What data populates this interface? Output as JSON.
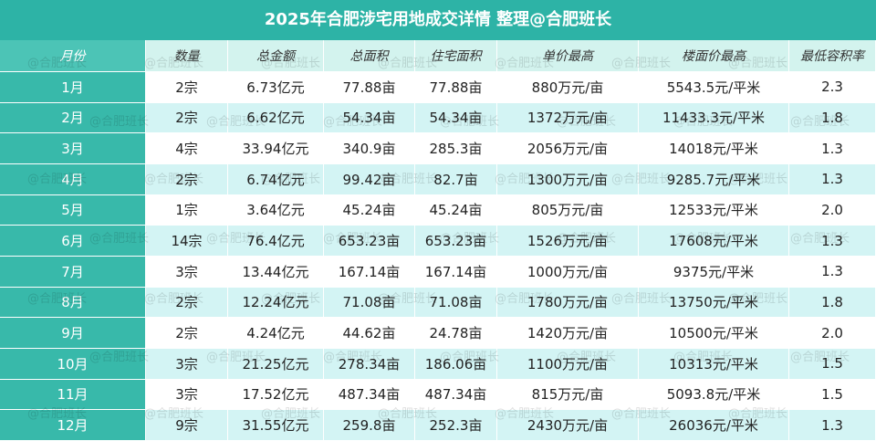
{
  "title": "2025年合肥涉宅用地成交详情 整理@合肥班长",
  "watermark": "@合肥班长",
  "table": {
    "header": [
      "月份",
      "数量",
      "总金额",
      "总面积",
      "住宅面积",
      "单价最高",
      "楼面价最高",
      "最低容积率"
    ],
    "rows": [
      [
        "1月",
        "2宗",
        "6.73亿元",
        "77.88亩",
        "77.88亩",
        "880万元/亩",
        "5543.5元/平米",
        "2.3"
      ],
      [
        "2月",
        "2宗",
        "6.62亿元",
        "54.34亩",
        "54.34亩",
        "1372万元/亩",
        "11433.3元/平米",
        "1.8"
      ],
      [
        "3月",
        "4宗",
        "33.94亿元",
        "340.9亩",
        "285.3亩",
        "2056万元/亩",
        "14018元/平米",
        "1.3"
      ],
      [
        "4月",
        "2宗",
        "6.74亿元",
        "99.42亩",
        "82.7亩",
        "1300万元/亩",
        "9285.7元/平米",
        "1.3"
      ],
      [
        "5月",
        "1宗",
        "3.64亿元",
        "45.24亩",
        "45.24亩",
        "805万元/亩",
        "12533元/平米",
        "2.0"
      ],
      [
        "6月",
        "14宗",
        "76.4亿元",
        "653.23亩",
        "653.23亩",
        "1526万元/亩",
        "17608元/平米",
        "1.3"
      ],
      [
        "7月",
        "3宗",
        "13.44亿元",
        "167.14亩",
        "167.14亩",
        "1000万元/亩",
        "9375元/平米",
        "1.3"
      ],
      [
        "8月",
        "2宗",
        "12.24亿元",
        "71.08亩",
        "71.08亩",
        "1780万元/亩",
        "13750元/平米",
        "1.8"
      ],
      [
        "9月",
        "2宗",
        "4.24亿元",
        "44.62亩",
        "24.78亩",
        "1420万元/亩",
        "10500元/平米",
        "2.0"
      ],
      [
        "10月",
        "3宗",
        "21.25亿元",
        "278.34亩",
        "186.06亩",
        "1100万元/亩",
        "10313元/平米",
        "1.5"
      ],
      [
        "11月",
        "3宗",
        "17.52亿元",
        "487.34亩",
        "487.34亩",
        "815万元/亩",
        "5093.8元/平米",
        "1.5"
      ],
      [
        "12月",
        "9宗",
        "31.55亿元",
        "259.8亩",
        "252.3亩",
        "2430万元/亩",
        "26036元/平米",
        "1.3"
      ]
    ]
  }
}
